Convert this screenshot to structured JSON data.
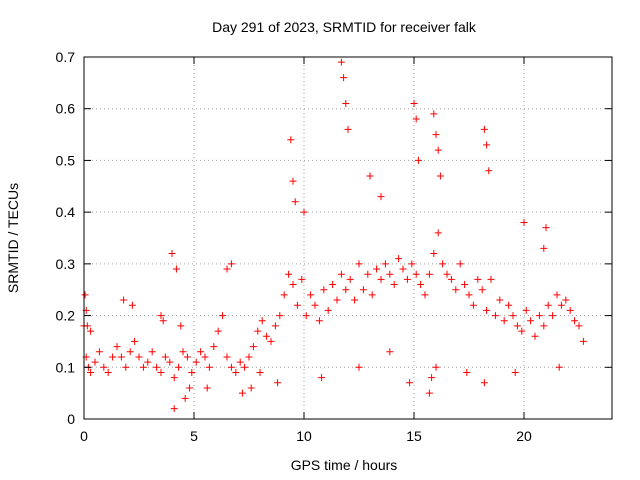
{
  "chart_data": {
    "type": "scatter",
    "title": "Day 291 of 2023, SRMTID for receiver falk",
    "xlabel": "GPS time / hours",
    "ylabel": "SRMTID / TECUs",
    "xlim": [
      0,
      24
    ],
    "ylim": [
      0,
      0.7
    ],
    "xticks": [
      0,
      5,
      10,
      15,
      20
    ],
    "xtick_labels": [
      "0",
      "5",
      "10",
      "15",
      "20"
    ],
    "yticks": [
      0,
      0.1,
      0.2,
      0.3,
      0.4,
      0.5,
      0.6,
      0.7
    ],
    "ytick_labels": [
      "0",
      "0.1",
      "0.2",
      "0.3",
      "0.4",
      "0.5",
      "0.6",
      "0.7"
    ],
    "grid": true,
    "marker": "+",
    "series": [
      {
        "name": "SRMTID",
        "color": "#ff0000",
        "x": [
          0.0,
          0.1,
          0.2,
          0.3,
          0.5,
          0.7,
          0.9,
          1.1,
          1.3,
          1.5,
          1.7,
          1.9,
          2.1,
          2.3,
          2.5,
          2.7,
          2.9,
          3.1,
          3.3,
          3.5,
          3.7,
          3.9,
          4.1,
          4.3,
          4.5,
          4.7,
          4.9,
          5.1,
          5.3,
          5.5,
          5.7,
          5.9,
          6.1,
          6.3,
          6.5,
          6.7,
          6.9,
          7.1,
          7.3,
          7.5,
          7.7,
          7.9,
          8.1,
          8.3,
          8.5,
          8.7,
          8.9,
          9.1,
          9.3,
          9.5,
          9.7,
          9.9,
          10.1,
          10.3,
          10.5,
          10.7,
          10.9,
          11.1,
          11.3,
          11.5,
          11.7,
          11.9,
          12.1,
          12.3,
          12.5,
          12.7,
          12.9,
          13.1,
          13.3,
          13.5,
          13.7,
          13.9,
          14.1,
          14.3,
          14.5,
          14.7,
          14.9,
          15.1,
          15.3,
          15.5,
          15.7,
          15.9,
          16.1,
          16.3,
          16.5,
          16.7,
          16.9,
          17.1,
          17.3,
          17.5,
          17.7,
          17.9,
          18.1,
          18.3,
          18.5,
          18.7,
          18.9,
          19.1,
          19.3,
          19.5,
          19.7,
          19.9,
          20.1,
          20.3,
          20.5,
          20.7,
          20.9,
          21.1,
          21.3,
          21.5,
          21.7,
          21.9,
          22.1,
          22.3,
          22.5,
          22.7,
          0.05,
          0.1,
          0.15,
          0.3,
          1.8,
          2.2,
          3.5,
          3.6,
          4.0,
          4.2,
          4.4,
          6.5,
          6.7,
          9.4,
          9.5,
          9.6,
          10.0,
          11.7,
          11.8,
          11.9,
          12.0,
          13.0,
          13.5,
          15.0,
          15.1,
          15.2,
          15.9,
          16.0,
          16.1,
          16.2,
          18.2,
          18.3,
          18.4,
          20.0,
          20.9,
          21.0,
          4.1,
          4.6,
          4.8,
          5.6,
          7.2,
          7.6,
          8.0,
          8.8,
          10.8,
          12.5,
          13.9,
          14.8,
          15.7,
          15.8,
          16.0,
          17.4,
          18.2,
          19.6,
          21.6
        ],
        "y": [
          0.18,
          0.12,
          0.1,
          0.09,
          0.11,
          0.13,
          0.1,
          0.09,
          0.12,
          0.14,
          0.12,
          0.1,
          0.13,
          0.15,
          0.12,
          0.1,
          0.11,
          0.13,
          0.1,
          0.09,
          0.12,
          0.11,
          0.08,
          0.1,
          0.13,
          0.12,
          0.09,
          0.11,
          0.13,
          0.12,
          0.1,
          0.14,
          0.17,
          0.2,
          0.12,
          0.1,
          0.09,
          0.11,
          0.1,
          0.12,
          0.14,
          0.17,
          0.19,
          0.16,
          0.15,
          0.18,
          0.2,
          0.24,
          0.28,
          0.26,
          0.22,
          0.27,
          0.2,
          0.24,
          0.22,
          0.19,
          0.25,
          0.21,
          0.26,
          0.23,
          0.28,
          0.25,
          0.27,
          0.23,
          0.3,
          0.25,
          0.28,
          0.24,
          0.29,
          0.27,
          0.3,
          0.28,
          0.26,
          0.31,
          0.29,
          0.27,
          0.3,
          0.28,
          0.26,
          0.24,
          0.28,
          0.32,
          0.36,
          0.3,
          0.28,
          0.27,
          0.25,
          0.3,
          0.26,
          0.24,
          0.22,
          0.27,
          0.25,
          0.21,
          0.27,
          0.2,
          0.23,
          0.19,
          0.22,
          0.2,
          0.18,
          0.17,
          0.21,
          0.19,
          0.16,
          0.2,
          0.18,
          0.22,
          0.2,
          0.24,
          0.22,
          0.23,
          0.21,
          0.19,
          0.18,
          0.15,
          0.24,
          0.21,
          0.18,
          0.17,
          0.23,
          0.22,
          0.2,
          0.19,
          0.32,
          0.29,
          0.18,
          0.29,
          0.3,
          0.54,
          0.46,
          0.42,
          0.4,
          0.69,
          0.66,
          0.61,
          0.56,
          0.47,
          0.43,
          0.61,
          0.58,
          0.5,
          0.59,
          0.55,
          0.52,
          0.47,
          0.56,
          0.53,
          0.48,
          0.38,
          0.33,
          0.37,
          0.02,
          0.04,
          0.06,
          0.06,
          0.05,
          0.06,
          0.09,
          0.07,
          0.08,
          0.1,
          0.13,
          0.07,
          0.05,
          0.08,
          0.1,
          0.09,
          0.07,
          0.09,
          0.1
        ]
      }
    ]
  }
}
